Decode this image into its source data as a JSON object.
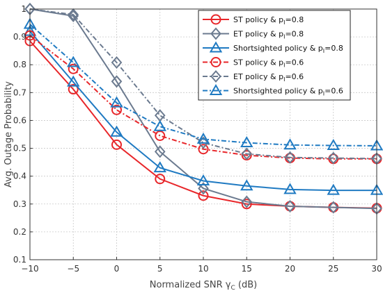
{
  "chart_data": {
    "type": "line",
    "xlabel_main": "Normalized SNR ",
    "xlabel_symbol": "γ",
    "xlabel_sub": "C",
    "xlabel_unit": " (dB)",
    "ylabel": "Avg. Outage Probability",
    "xlim": [
      -10,
      30
    ],
    "ylim": [
      0.1,
      1.0
    ],
    "xticks": [
      "−10",
      "−5",
      "0",
      "5",
      "10",
      "15",
      "20",
      "25",
      "30"
    ],
    "xtick_values": [
      -10,
      -5,
      0,
      5,
      10,
      15,
      20,
      25,
      30
    ],
    "yticks": [
      "0.1",
      "0.2",
      "0.3",
      "0.4",
      "0.5",
      "0.6",
      "0.7",
      "0.8",
      "0.9",
      "1"
    ],
    "ytick_values": [
      0.1,
      0.2,
      0.3,
      0.4,
      0.5,
      0.6,
      0.7,
      0.8,
      0.9,
      1.0
    ],
    "grid": true,
    "legend_position": "top-right",
    "x": [
      -10,
      -5,
      0,
      5,
      10,
      15,
      20,
      25,
      30
    ],
    "series": [
      {
        "name_main": "ST policy & p",
        "name_sub": "I",
        "name_tail": "=0.8",
        "color": "#e8262a",
        "marker": "circle",
        "dash": "solid",
        "values": [
          0.885,
          0.712,
          0.513,
          0.39,
          0.33,
          0.3,
          0.292,
          0.288,
          0.285
        ]
      },
      {
        "name_main": "ET policy & p",
        "name_sub": "I",
        "name_tail": "=0.8",
        "color": "#6b7a8f",
        "marker": "diamond",
        "dash": "solid",
        "values": [
          1.0,
          0.975,
          0.74,
          0.488,
          0.356,
          0.308,
          0.292,
          0.288,
          0.284
        ]
      },
      {
        "name_main": "Shortsighted policy & p",
        "name_sub": "I",
        "name_tail": "=0.8",
        "color": "#1f7ac2",
        "marker": "triangle",
        "dash": "solid",
        "values": [
          0.92,
          0.738,
          0.558,
          0.43,
          0.383,
          0.365,
          0.352,
          0.349,
          0.349
        ]
      },
      {
        "name_main": "ST policy & p",
        "name_sub": "I",
        "name_tail": "=0.6",
        "color": "#e8262a",
        "marker": "circle",
        "dash": "dashdot",
        "values": [
          0.905,
          0.785,
          0.638,
          0.545,
          0.497,
          0.475,
          0.465,
          0.462,
          0.462
        ]
      },
      {
        "name_main": "ET policy & p",
        "name_sub": "I",
        "name_tail": "=0.6",
        "color": "#6b7a8f",
        "marker": "diamond",
        "dash": "dashdot",
        "values": [
          1.0,
          0.98,
          0.808,
          0.618,
          0.52,
          0.48,
          0.467,
          0.465,
          0.463
        ]
      },
      {
        "name_main": "Shortsighted policy & p",
        "name_sub": "I",
        "name_tail": "=0.6",
        "color": "#1f7ac2",
        "marker": "triangle",
        "dash": "dashdot",
        "values": [
          0.945,
          0.808,
          0.663,
          0.578,
          0.533,
          0.52,
          0.512,
          0.51,
          0.509
        ]
      }
    ]
  }
}
